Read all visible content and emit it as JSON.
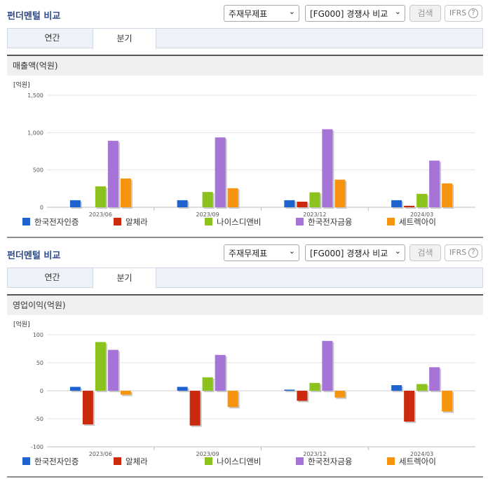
{
  "sections": [
    {
      "title": "펀더멘털 비교",
      "select1": "주재무제표",
      "select2": "[FG000] 경쟁사 비교",
      "search_label": "검색",
      "ifrs_label": "IFRS",
      "help_glyph": "?",
      "tabs": [
        {
          "label": "연간",
          "active": false
        },
        {
          "label": "분기",
          "active": true
        }
      ],
      "chart_title": "매출액(억원)",
      "unit": "[억원]"
    },
    {
      "title": "펀더멘털 비교",
      "select1": "주재무제표",
      "select2": "[FG000] 경쟁사 비교",
      "search_label": "검색",
      "ifrs_label": "IFRS",
      "help_glyph": "?",
      "tabs": [
        {
          "label": "연간",
          "active": false
        },
        {
          "label": "분기",
          "active": true
        }
      ],
      "chart_title": "영업이익(억원)",
      "unit": "[억원]"
    }
  ],
  "chart_data": [
    {
      "type": "bar",
      "title": "매출액(억원)",
      "unit": "[억원]",
      "categories": [
        "2023/06",
        "2023/09",
        "2023/12",
        "2024/03"
      ],
      "ylim": [
        0,
        1500
      ],
      "yticks": [
        0,
        500,
        1000,
        1500
      ],
      "ytick_labels": [
        "0",
        "500",
        "1,000",
        "1,500"
      ],
      "grid": true,
      "legend_position": "bottom",
      "series": [
        {
          "name": "한국전자인증",
          "color": "#1f63d1",
          "values": [
            95,
            95,
            95,
            95
          ]
        },
        {
          "name": "알체라",
          "color": "#cc2a0c",
          "values": [
            0,
            0,
            75,
            20
          ]
        },
        {
          "name": "나이스디앤비",
          "color": "#8cc21e",
          "values": [
            280,
            205,
            200,
            180
          ]
        },
        {
          "name": "한국전자금융",
          "color": "#a673d6",
          "values": [
            890,
            935,
            1045,
            625
          ]
        },
        {
          "name": "세트렉아이",
          "color": "#f6930f",
          "values": [
            385,
            255,
            370,
            320
          ]
        }
      ]
    },
    {
      "type": "bar",
      "title": "영업이익(억원)",
      "unit": "[억원]",
      "categories": [
        "2023/06",
        "2023/09",
        "2023/12",
        "2024/03"
      ],
      "ylim": [
        -100,
        100
      ],
      "yticks": [
        -100,
        -50,
        0,
        50,
        100
      ],
      "ytick_labels": [
        "-100",
        "-50",
        "0",
        "50",
        "100"
      ],
      "grid": true,
      "legend_position": "bottom",
      "series": [
        {
          "name": "한국전자인증",
          "color": "#1f63d1",
          "values": [
            7,
            7,
            2,
            10
          ]
        },
        {
          "name": "알체라",
          "color": "#cc2a0c",
          "values": [
            -60,
            -62,
            -18,
            -55
          ]
        },
        {
          "name": "나이스디앤비",
          "color": "#8cc21e",
          "values": [
            87,
            24,
            14,
            12
          ]
        },
        {
          "name": "한국전자금융",
          "color": "#a673d6",
          "values": [
            73,
            64,
            89,
            42
          ]
        },
        {
          "name": "세트렉아이",
          "color": "#f6930f",
          "values": [
            -7,
            -29,
            -12,
            -37
          ]
        }
      ]
    }
  ]
}
